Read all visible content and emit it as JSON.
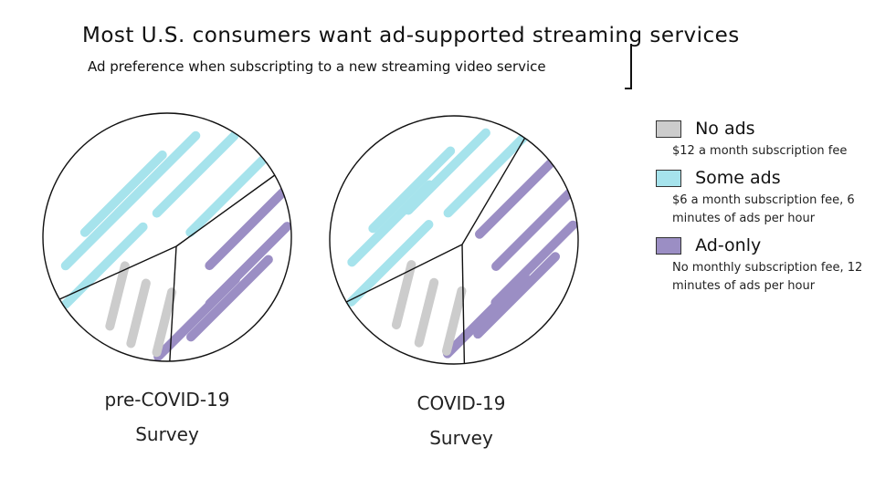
{
  "chart_data": {
    "type": "pie",
    "title": "Most U.S. consumers want ad-supported streaming services",
    "subtitle": "Ad preference when subscripting to a new streaming video service",
    "series_keys": [
      "no_ads",
      "some_ads",
      "ad_only"
    ],
    "colors": {
      "no_ads": "#cccccc",
      "some_ads": "#a6e3ec",
      "ad_only": "#9b8ec4"
    },
    "pies": [
      {
        "label": "pre-COVID-19",
        "sublabel": "Survey",
        "values": {
          "no_ads": 17,
          "some_ads": 50,
          "ad_only": 33
        }
      },
      {
        "label": "COVID-19",
        "sublabel": "Survey",
        "values": {
          "no_ads": 18,
          "some_ads": 43,
          "ad_only": 39
        }
      }
    ],
    "legend": [
      {
        "key": "no_ads",
        "name": "No ads",
        "desc": "$12 a month subscription fee"
      },
      {
        "key": "some_ads",
        "name": "Some ads",
        "desc": "$6 a month subscription fee, 6 minutes of ads per hour"
      },
      {
        "key": "ad_only",
        "name": "Ad-only",
        "desc": "No monthly subscription fee, 12 minutes of ads per hour"
      }
    ]
  }
}
